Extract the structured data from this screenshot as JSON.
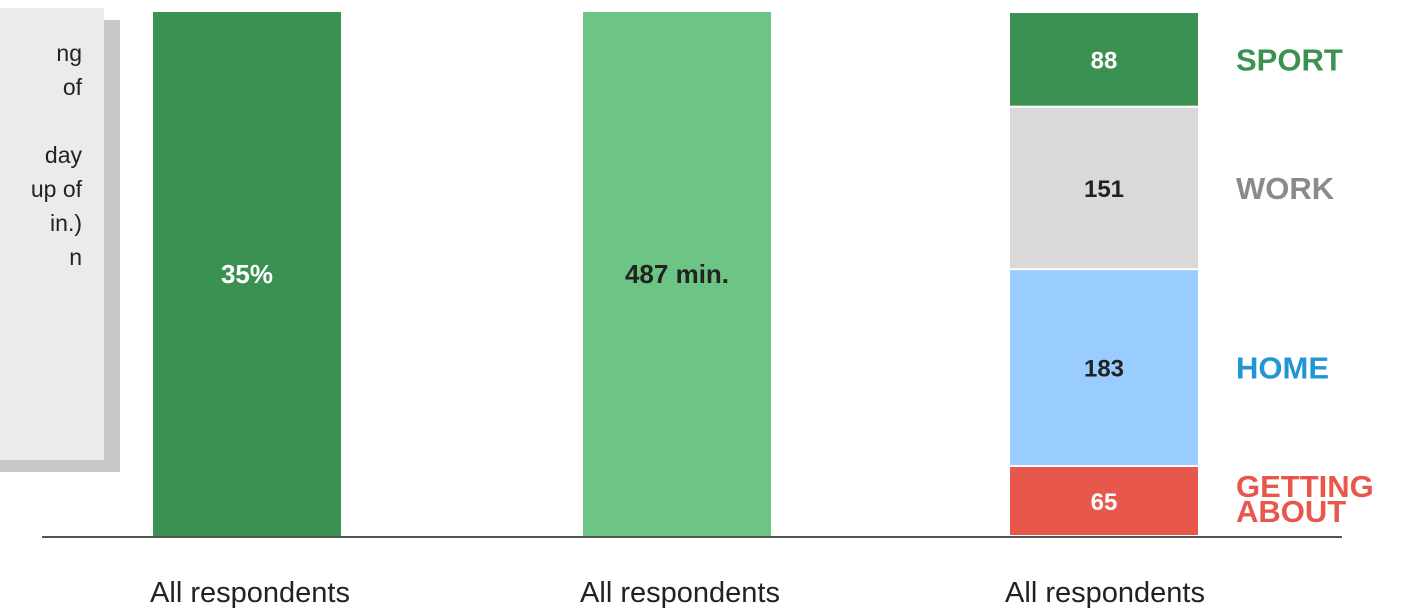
{
  "note": {
    "lines": [
      "ng",
      "of",
      "",
      "day",
      "up of",
      "in.)",
      "n"
    ]
  },
  "colors": {
    "dark_green": "#3a9152",
    "light_green": "#6cc585",
    "grey": "#d9d9d9",
    "blue": "#99ccff",
    "red": "#e8574b",
    "label_green": "#3a9152",
    "label_grey": "#8a8a8a",
    "label_blue": "#2196d3",
    "label_red": "#e8574b"
  },
  "chart_data": [
    {
      "type": "bar",
      "categories": [
        "All respondents"
      ],
      "values": [
        35
      ],
      "data_labels": [
        "35%"
      ]
    },
    {
      "type": "bar",
      "categories": [
        "All respondents"
      ],
      "values": [
        487
      ],
      "data_labels": [
        "487 min."
      ]
    },
    {
      "type": "bar",
      "stacked": true,
      "categories": [
        "All respondents"
      ],
      "series": [
        {
          "name": "GETTING ABOUT",
          "values": [
            65
          ]
        },
        {
          "name": "HOME",
          "values": [
            183
          ]
        },
        {
          "name": "WORK",
          "values": [
            151
          ]
        },
        {
          "name": "SPORT",
          "values": [
            88
          ]
        }
      ],
      "total": 487
    }
  ]
}
